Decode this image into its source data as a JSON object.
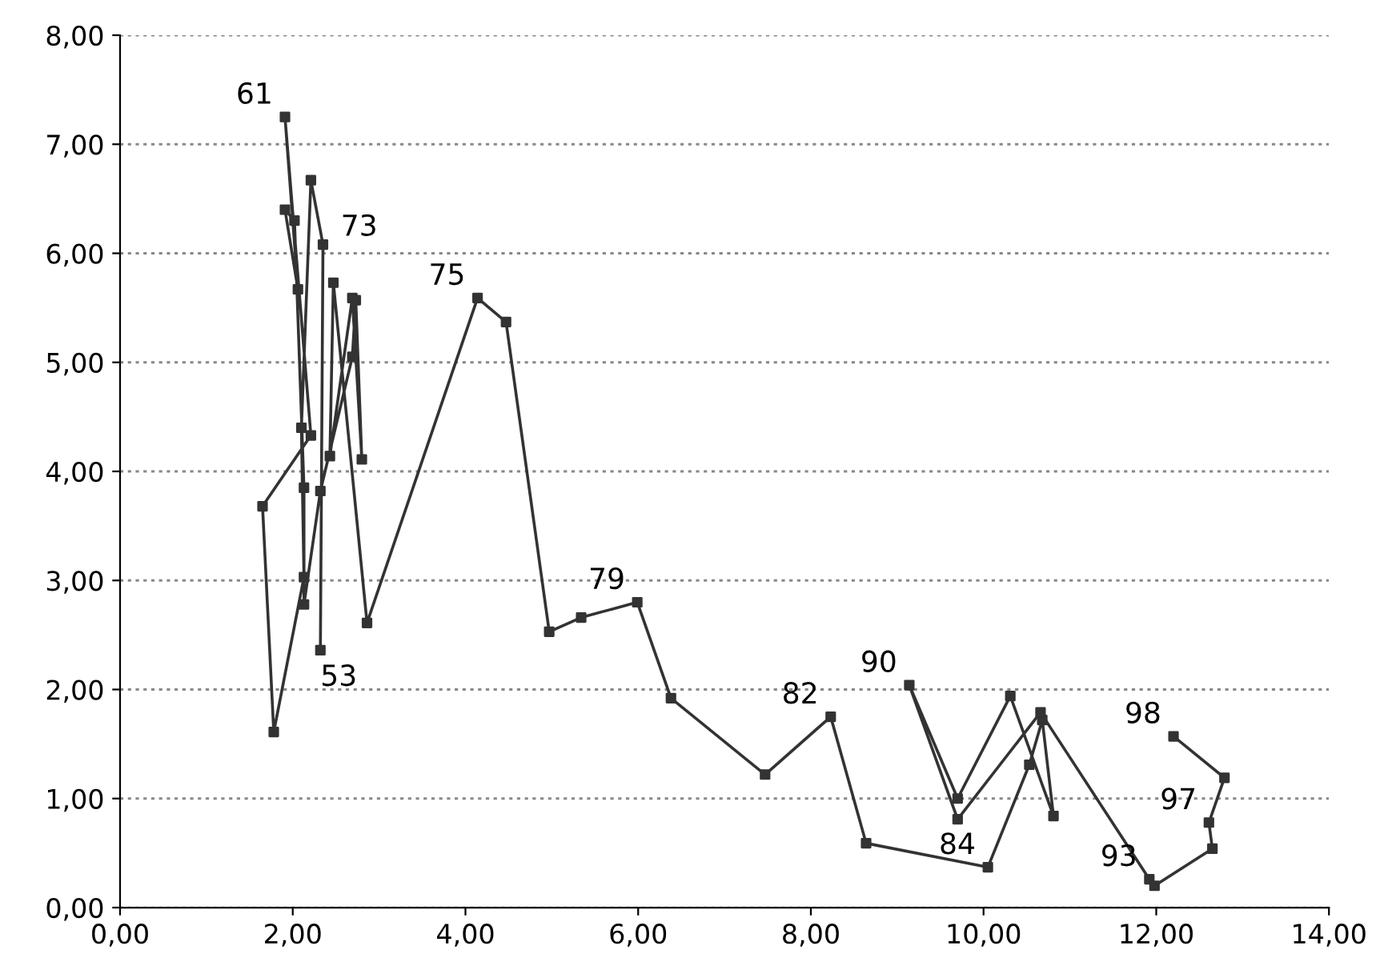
{
  "chart_data": {
    "type": "line",
    "x": [
      2.32,
      2.35,
      2.21,
      2.1,
      2.13,
      1.78,
      1.65,
      2.21,
      1.91,
      2.06,
      1.91,
      2.02,
      2.13,
      2.13,
      2.32,
      2.69,
      2.73,
      2.8,
      2.69,
      2.43,
      2.47,
      2.86,
      4.14,
      4.47,
      4.97,
      5.34,
      5.99,
      6.38,
      7.47,
      8.23,
      8.64,
      10.05,
      10.53,
      10.68,
      10.81,
      10.31,
      9.7,
      9.14,
      9.7,
      10.66,
      11.92,
      11.98,
      12.65,
      12.61,
      12.79,
      12.2
    ],
    "series": [
      {
        "color": "#333333",
        "values": [
          2.36,
          6.08,
          6.67,
          4.4,
          3.03,
          1.61,
          3.68,
          4.33,
          7.25,
          5.67,
          6.4,
          6.3,
          3.85,
          2.78,
          3.82,
          5.05,
          5.57,
          4.11,
          5.59,
          4.14,
          5.73,
          2.61,
          5.59,
          5.37,
          2.53,
          2.66,
          2.8,
          1.92,
          1.22,
          1.75,
          0.59,
          0.37,
          1.31,
          1.72,
          0.84,
          1.94,
          1.0,
          2.04,
          0.81,
          1.79,
          0.26,
          0.2,
          0.54,
          0.78,
          1.19,
          1.57
        ]
      }
    ],
    "marker": "square",
    "line_style": "solid",
    "grid": "y",
    "legend": false,
    "xlim": [
      0,
      14
    ],
    "ylim": [
      0,
      8
    ],
    "xticks": [
      {
        "value": 0,
        "label": "0,00"
      },
      {
        "value": 2,
        "label": "2,00"
      },
      {
        "value": 4,
        "label": "4,00"
      },
      {
        "value": 6,
        "label": "6,00"
      },
      {
        "value": 8,
        "label": "8,00"
      },
      {
        "value": 10,
        "label": "10,00"
      },
      {
        "value": 12,
        "label": "12,00"
      },
      {
        "value": 14,
        "label": "14,00"
      }
    ],
    "yticks": [
      {
        "value": 0,
        "label": "0,00"
      },
      {
        "value": 1,
        "label": "1,00"
      },
      {
        "value": 2,
        "label": "2,00"
      },
      {
        "value": 3,
        "label": "3,00"
      },
      {
        "value": 4,
        "label": "4,00"
      },
      {
        "value": 5,
        "label": "5,00"
      },
      {
        "value": 6,
        "label": "6,00"
      },
      {
        "value": 7,
        "label": "7,00"
      },
      {
        "value": 8,
        "label": "8,00"
      }
    ],
    "annotations": [
      {
        "text": "53",
        "x": 2.32,
        "y": 2.36
      },
      {
        "text": "61",
        "x": 1.91,
        "y": 7.25
      },
      {
        "text": "73",
        "x": 2.35,
        "y": 6.08
      },
      {
        "text": "75",
        "x": 4.14,
        "y": 5.59
      },
      {
        "text": "79",
        "x": 5.99,
        "y": 2.8
      },
      {
        "text": "82",
        "x": 8.23,
        "y": 1.75
      },
      {
        "text": "84",
        "x": 10.05,
        "y": 0.37
      },
      {
        "text": "90",
        "x": 9.14,
        "y": 2.04
      },
      {
        "text": "93",
        "x": 11.92,
        "y": 0.26
      },
      {
        "text": "97",
        "x": 12.61,
        "y": 0.78
      },
      {
        "text": "98",
        "x": 12.2,
        "y": 1.57
      }
    ]
  }
}
